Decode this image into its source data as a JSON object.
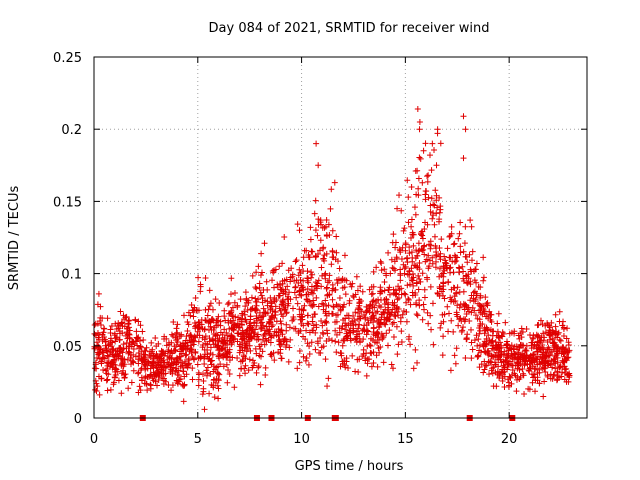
{
  "chart_data": {
    "type": "scatter",
    "title": "Day 084 of 2021, SRMTID for receiver wind",
    "xlabel": "GPS time / hours",
    "ylabel": "SRMTID / TECUs",
    "xlim": [
      0,
      23.75
    ],
    "ylim": [
      0,
      0.25
    ],
    "x_ticks": [
      0,
      5,
      10,
      15,
      20
    ],
    "y_ticks": [
      0,
      0.05,
      0.1,
      0.15,
      0.2,
      0.25
    ],
    "x_tick_labels": [
      "0",
      "5",
      "10",
      "15",
      "20"
    ],
    "y_tick_labels": [
      "0",
      "0.05",
      "0.1",
      "0.15",
      "0.2",
      "0.25"
    ],
    "grid": true,
    "marker": "+",
    "marker_color": "#e00000",
    "series": [
      {
        "name": "SRMTID",
        "profile_hours": [
          0,
          0.3,
          0.6,
          1,
          1.5,
          2,
          2.5,
          3,
          3.5,
          4,
          4.5,
          5,
          5.5,
          6,
          6.5,
          7,
          7.5,
          8,
          8.5,
          9,
          9.5,
          10,
          10.5,
          11,
          11.5,
          12,
          12.5,
          13,
          13.5,
          14,
          14.5,
          15,
          15.5,
          16,
          16.5,
          17,
          17.5,
          18,
          18.5,
          19,
          19.5,
          20,
          20.5,
          21,
          21.5,
          22,
          22.5,
          23
        ],
        "profile_mean": [
          0.05,
          0.052,
          0.038,
          0.045,
          0.05,
          0.048,
          0.035,
          0.036,
          0.038,
          0.04,
          0.043,
          0.06,
          0.05,
          0.048,
          0.055,
          0.058,
          0.062,
          0.068,
          0.07,
          0.075,
          0.08,
          0.082,
          0.08,
          0.09,
          0.085,
          0.07,
          0.065,
          0.062,
          0.068,
          0.075,
          0.085,
          0.1,
          0.11,
          0.12,
          0.125,
          0.095,
          0.09,
          0.09,
          0.075,
          0.055,
          0.045,
          0.04,
          0.045,
          0.04,
          0.045,
          0.05,
          0.045,
          0.04
        ],
        "profile_spread": [
          0.015,
          0.015,
          0.012,
          0.013,
          0.014,
          0.013,
          0.008,
          0.009,
          0.01,
          0.011,
          0.012,
          0.018,
          0.018,
          0.014,
          0.014,
          0.014,
          0.015,
          0.017,
          0.018,
          0.019,
          0.02,
          0.022,
          0.025,
          0.03,
          0.025,
          0.018,
          0.016,
          0.015,
          0.016,
          0.018,
          0.022,
          0.025,
          0.03,
          0.035,
          0.03,
          0.025,
          0.022,
          0.022,
          0.02,
          0.014,
          0.011,
          0.01,
          0.011,
          0.01,
          0.012,
          0.013,
          0.012,
          0.012
        ],
        "peaks": [
          [
            10.7,
            0.19
          ],
          [
            10.8,
            0.175
          ],
          [
            11.6,
            0.163
          ],
          [
            15.6,
            0.214
          ],
          [
            15.7,
            0.205
          ],
          [
            16.3,
            0.19
          ],
          [
            17.8,
            0.209
          ],
          [
            17.9,
            0.2
          ],
          [
            17.8,
            0.18
          ],
          [
            16.5,
            0.175
          ],
          [
            9.9,
            0.13
          ],
          [
            14.6,
            0.145
          ],
          [
            15.3,
            0.16
          ]
        ],
        "zero_hours": [
          2.35,
          7.85,
          8.55,
          10.3,
          11.6,
          11.65,
          18.1,
          20.15
        ]
      }
    ]
  }
}
